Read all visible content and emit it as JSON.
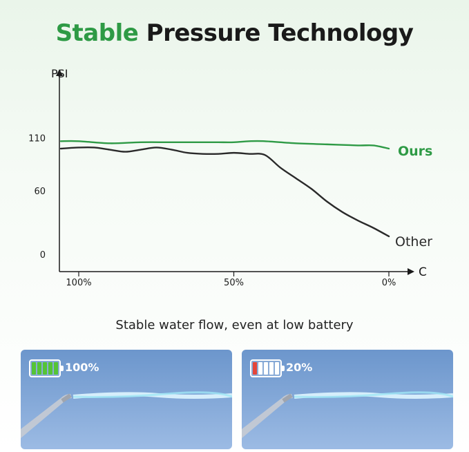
{
  "title": {
    "part1": "Stable",
    "part2": "Pressure Technology"
  },
  "subtitle": "Stable water flow, even at low battery",
  "colors": {
    "ours": "#2e9a45",
    "other": "#2a2a2a",
    "axis": "#1a1a1a",
    "title_green": "#2e9a45"
  },
  "chart_data": {
    "type": "line",
    "title": "Stable Pressure Technology",
    "ylabel": "PSI",
    "xlabel": "C",
    "y_ticks": [
      0,
      60,
      110
    ],
    "ylim": [
      0,
      110
    ],
    "x_ticks": [
      "100%",
      "50%",
      "0%"
    ],
    "x_reversed": true,
    "grid": false,
    "legend": "inline-right",
    "series": [
      {
        "name": "Ours",
        "x": [
          105,
          100,
          90,
          80,
          70,
          60,
          55,
          50,
          45,
          40,
          30,
          20,
          10,
          5,
          0
        ],
        "y": [
          107,
          107,
          105,
          106,
          106,
          106,
          106,
          106,
          107,
          107,
          105,
          104,
          103,
          103,
          100
        ]
      },
      {
        "name": "Other",
        "x": [
          105,
          100,
          95,
          90,
          85,
          80,
          75,
          70,
          65,
          60,
          55,
          50,
          45,
          40,
          35,
          30,
          25,
          20,
          15,
          10,
          5,
          0
        ],
        "y": [
          100,
          101,
          101,
          99,
          97,
          99,
          101,
          99,
          96,
          95,
          95,
          96,
          95,
          94,
          82,
          72,
          62,
          50,
          40,
          32,
          25,
          17
        ]
      }
    ]
  },
  "battery_panels": [
    {
      "label": "100%",
      "filled_cells": 5,
      "total_cells": 5,
      "cell_color": "#55c436"
    },
    {
      "label": "20%",
      "filled_cells": 1,
      "total_cells": 5,
      "cell_color": "#e4453a"
    }
  ]
}
